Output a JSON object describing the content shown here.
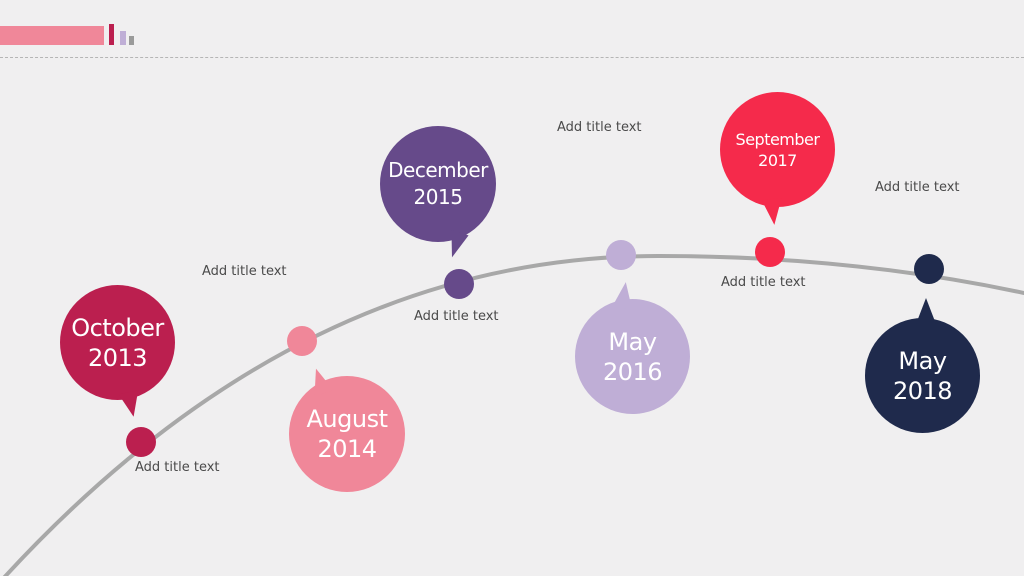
{
  "colors": {
    "background": "#f0eff0",
    "curve": "#a8a8a8",
    "header_line": "#b5b5b5",
    "oct2013": "#bb1f4f",
    "aug2014": "#f08799",
    "dec2015": "#664a8a",
    "may2016": "#bfaed6",
    "sep2017": "#f52a4b",
    "may2018": "#1f2a4c"
  },
  "milestones": [
    {
      "date": "October\n2013",
      "caption": "Add title text"
    },
    {
      "date": "August\n2014",
      "caption": "Add title text"
    },
    {
      "date": "December\n2015",
      "caption": "Add title text"
    },
    {
      "date": "May\n2016",
      "caption": "Add title text"
    },
    {
      "date": "September\n2017",
      "caption": "Add title text"
    },
    {
      "date": "May\n2018",
      "caption": "Add title text"
    }
  ]
}
